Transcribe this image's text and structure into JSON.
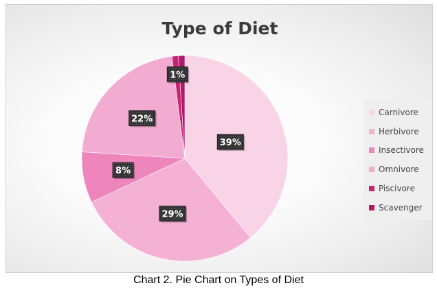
{
  "caption": "Chart 2. Pie Chart on Types of Diet",
  "chart_data": {
    "type": "pie",
    "title": "Type of Diet",
    "legend_position": "right",
    "slices": [
      {
        "label": "Carnivore",
        "value": 39,
        "display": "39%",
        "color": "#f9d3e6"
      },
      {
        "label": "Herbivore",
        "value": 29,
        "display": "29%",
        "color": "#f4b1d3"
      },
      {
        "label": "Insectivore",
        "value": 8,
        "display": "8%",
        "color": "#ee85bd"
      },
      {
        "label": "Omnivore",
        "value": 22,
        "display": "22%",
        "color": "#f2acd1"
      },
      {
        "label": "Piscivore",
        "value": 1,
        "display": "1%",
        "color": "#c82476"
      },
      {
        "label": "Scavenger",
        "value": 1,
        "display": "",
        "color": "#b01a68"
      }
    ]
  }
}
